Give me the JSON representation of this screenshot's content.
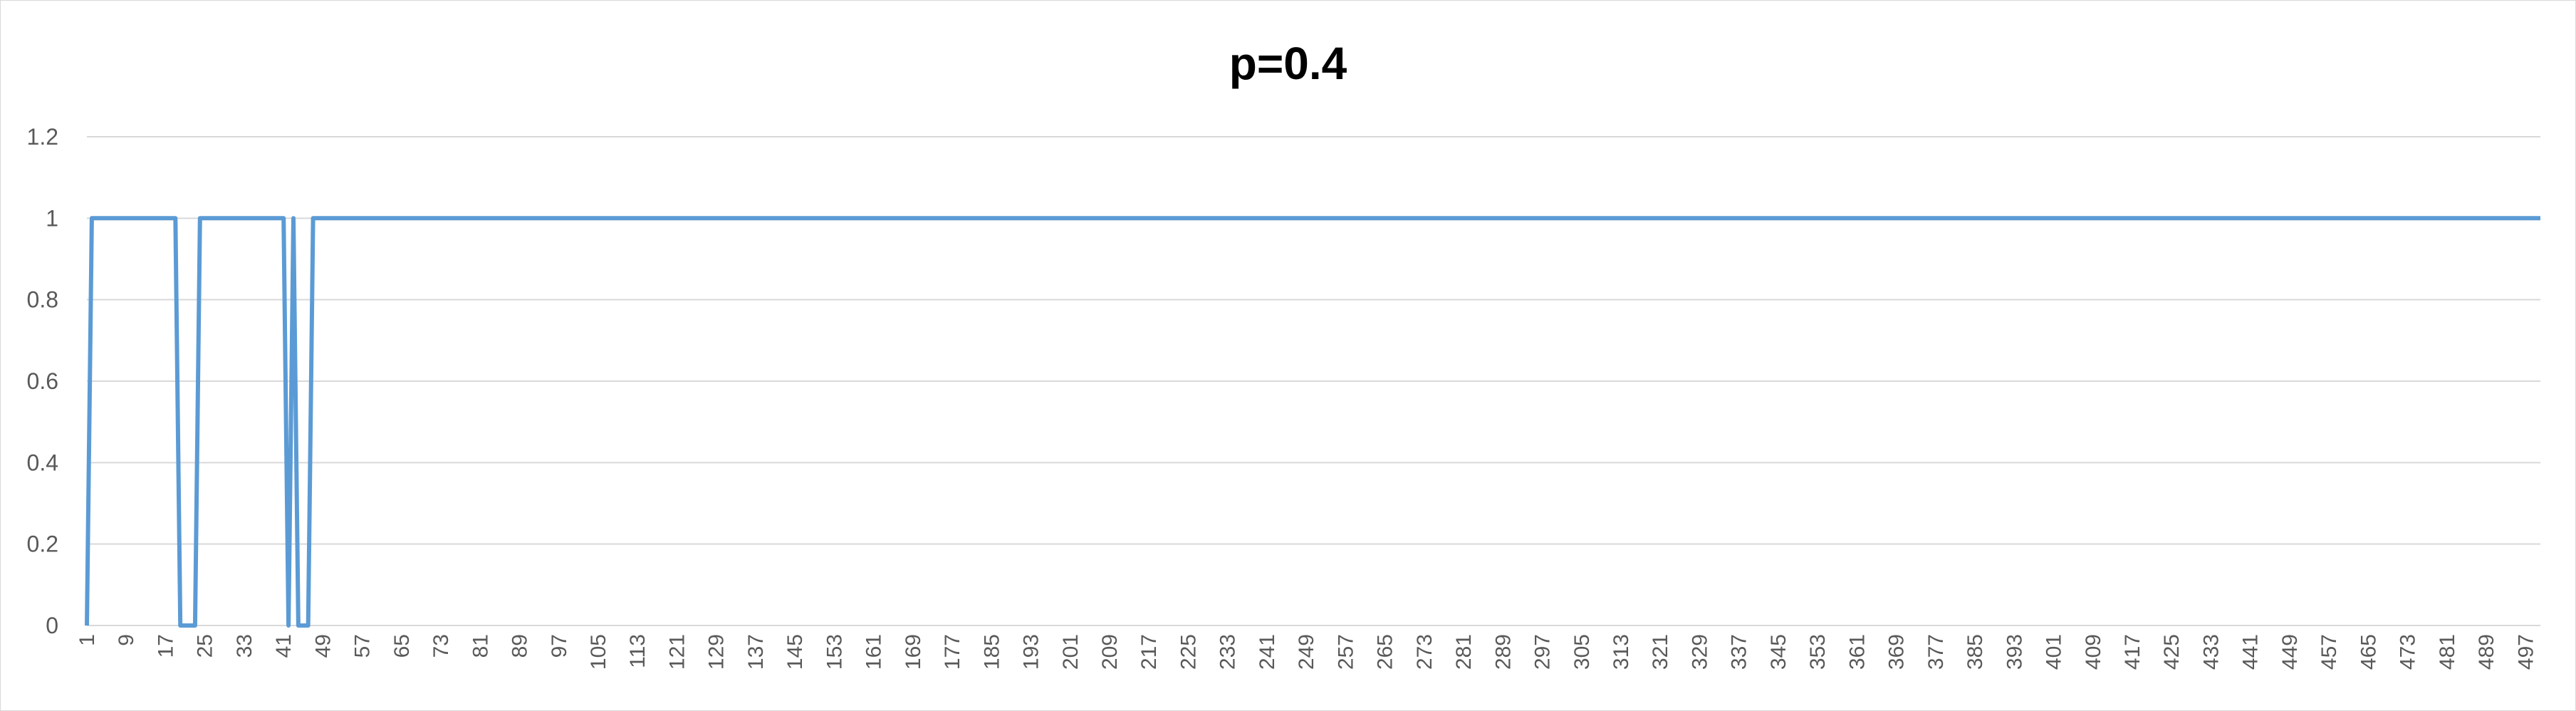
{
  "chart_data": {
    "type": "line",
    "title": "p=0.4",
    "xlabel": "",
    "ylabel": "",
    "ylim": [
      0,
      1.2
    ],
    "xlim": [
      1,
      500
    ],
    "y_ticks": [
      "0",
      "0.2",
      "0.4",
      "0.6",
      "0.8",
      "1",
      "1.2"
    ],
    "x_tick_start": 1,
    "x_tick_step": 8,
    "x_tick_end": 497,
    "grid": true,
    "legend": "none",
    "series": [
      {
        "color": "#5b9bd5",
        "points": [
          [
            1,
            0
          ],
          [
            2,
            1
          ],
          [
            19,
            1
          ],
          [
            20,
            0
          ],
          [
            23,
            0
          ],
          [
            24,
            1
          ],
          [
            41,
            1
          ],
          [
            42,
            0
          ],
          [
            43,
            1
          ],
          [
            44,
            0
          ],
          [
            46,
            0
          ],
          [
            47,
            1
          ],
          [
            500,
            1
          ]
        ]
      }
    ]
  },
  "colors": {
    "line": "#5b9bd5",
    "grid": "#d9d9d9",
    "tick_text": "#595959",
    "title": "#000000"
  }
}
